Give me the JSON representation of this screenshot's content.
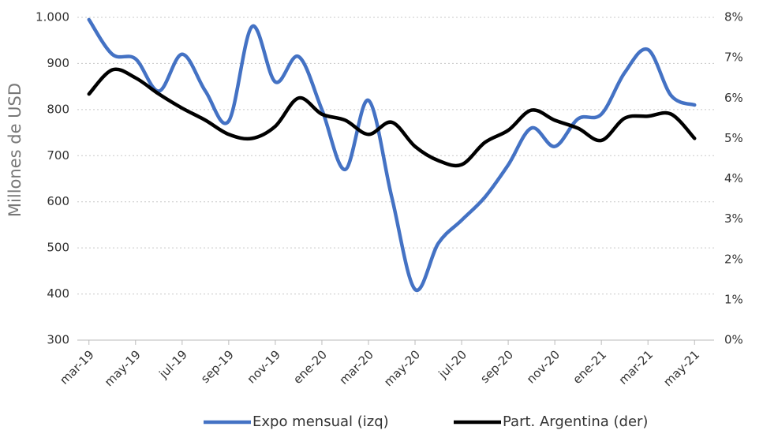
{
  "chart_data": {
    "type": "line",
    "y_label": "Millones de USD",
    "categories": [
      "mar-19",
      null,
      "may-19",
      null,
      "jul-19",
      null,
      "sep-19",
      null,
      "nov-19",
      null,
      "ene-20",
      null,
      "mar-20",
      null,
      "may-20",
      null,
      "jul-20",
      null,
      "sep-20",
      null,
      "nov-20",
      null,
      "ene-21",
      null,
      "mar-21",
      null,
      "may-21"
    ],
    "series": [
      {
        "name": "Expo mensual (izq)",
        "color": "#4472c4",
        "axis": "y",
        "values": [
          995,
          920,
          910,
          840,
          920,
          840,
          775,
          980,
          860,
          915,
          800,
          670,
          820,
          610,
          410,
          510,
          560,
          610,
          680,
          760,
          720,
          780,
          790,
          880,
          930,
          830,
          810
        ]
      },
      {
        "name": "Part. Argentina (der)",
        "color": "#000000",
        "axis": "y2",
        "values": [
          6.1,
          6.7,
          6.5,
          6.1,
          5.75,
          5.45,
          5.1,
          5.0,
          5.3,
          6.0,
          5.6,
          5.45,
          5.1,
          5.4,
          4.8,
          4.45,
          4.35,
          4.9,
          5.2,
          5.7,
          5.45,
          5.25,
          4.95,
          5.5,
          5.55,
          5.6,
          5.0
        ]
      }
    ],
    "ylim": [
      300,
      1000
    ],
    "yticks": [
      300,
      400,
      500,
      600,
      700,
      800,
      900,
      {
        "value": 1000,
        "label": "1.000"
      }
    ],
    "y2lim": [
      0,
      8
    ],
    "y2ticks": [
      {
        "value": 0,
        "label": "0%"
      },
      {
        "value": 1,
        "label": "1%"
      },
      {
        "value": 2,
        "label": "2%"
      },
      {
        "value": 3,
        "label": "3%"
      },
      {
        "value": 4,
        "label": "4%"
      },
      {
        "value": 5,
        "label": "5%"
      },
      {
        "value": 6,
        "label": "6%"
      },
      {
        "value": 7,
        "label": "7%"
      },
      {
        "value": 8,
        "label": "8%"
      }
    ],
    "grid": true,
    "legend": "bottom"
  }
}
